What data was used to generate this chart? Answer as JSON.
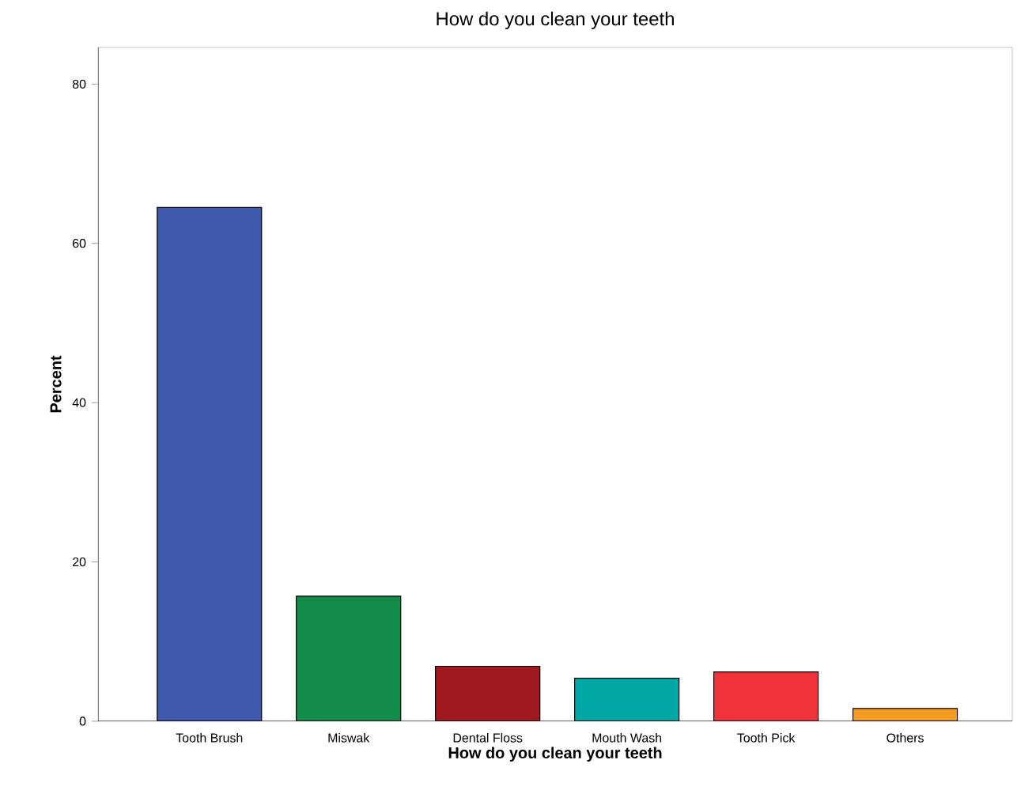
{
  "chart_data": {
    "type": "bar",
    "title": "How do you clean your teeth",
    "xlabel": "How do you clean your teeth",
    "ylabel": "Percent",
    "categories": [
      "Tooth Brush",
      "Miswak",
      "Dental Floss",
      "Mouth Wash",
      "Tooth Pick",
      "Others"
    ],
    "values": [
      64.5,
      15.7,
      6.9,
      5.4,
      6.2,
      1.6
    ],
    "colors": [
      "#3e58ac",
      "#138c4a",
      "#a0191e",
      "#00a7a5",
      "#f0333b",
      "#f59a23"
    ],
    "ylim": [
      0,
      84.6
    ],
    "yticks": [
      0,
      20,
      40,
      60,
      80
    ],
    "grid": false
  }
}
